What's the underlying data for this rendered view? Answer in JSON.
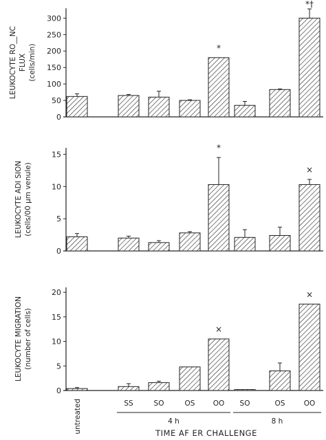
{
  "chart_data": [
    {
      "type": "bar",
      "panel": "top",
      "ylabel_lines": [
        "LEUKOCYTE RO__NC",
        "FLUX",
        "(cells/min)"
      ],
      "ylim": [
        0,
        330
      ],
      "yticks": [
        "0",
        "50",
        "100",
        "150",
        "200",
        "250",
        "300"
      ],
      "ytick_values": [
        0,
        50,
        100,
        150,
        200,
        250,
        300
      ],
      "values": [
        62,
        65,
        60,
        50,
        180,
        35,
        83,
        300
      ],
      "errors": [
        8,
        3,
        18,
        2,
        0,
        12,
        2,
        28
      ],
      "annotations": [
        "",
        "",
        "",
        "",
        "*",
        "",
        "",
        "*†"
      ]
    },
    {
      "type": "bar",
      "panel": "middle",
      "ylabel_lines": [
        "LEUKOCYTE ADI SION",
        "(cells/00 µm venule)"
      ],
      "ylim": [
        0,
        16
      ],
      "yticks": [
        "0",
        "5",
        "10",
        "15"
      ],
      "ytick_values": [
        0,
        5,
        10,
        15
      ],
      "values": [
        2.2,
        2.0,
        1.3,
        2.8,
        10.3,
        2.1,
        2.4,
        10.3
      ],
      "errors": [
        0.5,
        0.3,
        0.3,
        0.2,
        4.2,
        1.2,
        1.3,
        0.8
      ],
      "annotations": [
        "",
        "",
        "",
        "",
        "*",
        "",
        "",
        "×"
      ]
    },
    {
      "type": "bar",
      "panel": "bottom",
      "ylabel_lines": [
        "LEUKOCYTE MIGRATION",
        "(number of cells)"
      ],
      "ylim": [
        0,
        21
      ],
      "yticks": [
        "0",
        "5",
        "10",
        "15",
        "20"
      ],
      "ytick_values": [
        0,
        5,
        10,
        15,
        20
      ],
      "values": [
        0.4,
        0.8,
        1.6,
        4.8,
        10.5,
        0.2,
        4.0,
        17.6
      ],
      "errors": [
        0.2,
        0.6,
        0.3,
        0,
        0,
        0,
        1.6,
        0
      ],
      "annotations": [
        "",
        "",
        "",
        "",
        "×",
        "",
        "",
        "×"
      ],
      "categories": [
        "untreated",
        "SS",
        "SO",
        "OS",
        "OO",
        "SO",
        "OS",
        "OO"
      ],
      "groups": [
        {
          "label": "4 h",
          "first": 1,
          "last": 4
        },
        {
          "label": "8 h",
          "first": 5,
          "last": 7
        }
      ],
      "xlabel": "TIME AF ER CHALLENGE"
    }
  ]
}
